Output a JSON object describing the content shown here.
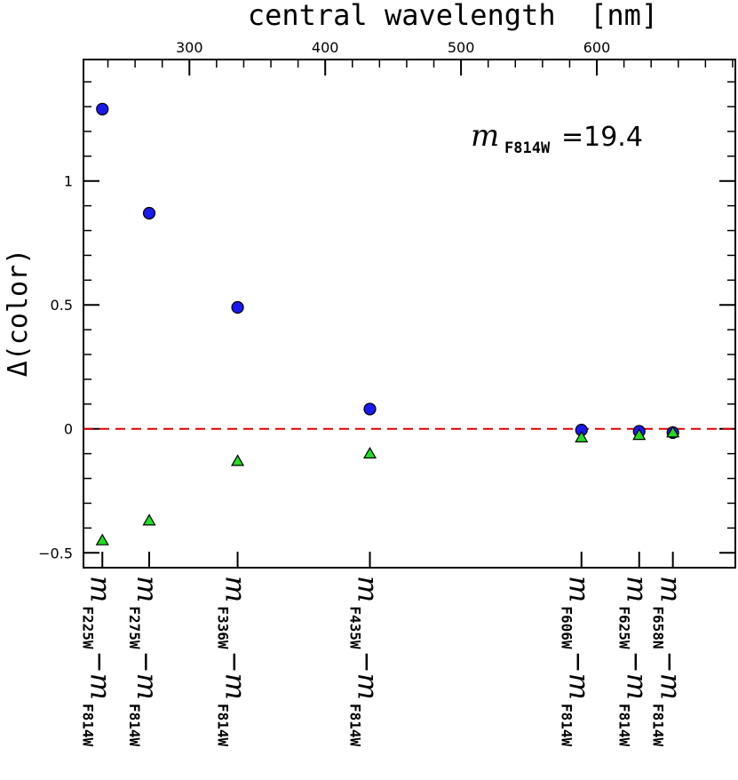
{
  "chart_data": {
    "type": "scatter",
    "top_axis": {
      "label": "central wavelength  [nm]",
      "ticks": [
        300,
        400,
        500,
        600
      ],
      "xlim": [
        222,
        702
      ],
      "minor_step": 20
    },
    "y_axis": {
      "label": "Δ(color)",
      "ylim": [
        -0.56,
        1.49
      ],
      "ticks": [
        -0.5,
        0,
        0.5,
        1
      ],
      "tick_labels": [
        "−0.5",
        "0",
        "0.5",
        "1"
      ],
      "minor_step": 0.1
    },
    "reference_line": {
      "y": 0,
      "style": "dashed",
      "color": "#dd0000"
    },
    "annotation": {
      "symbol": "m",
      "subscript": "F814W",
      "value": "=19.4"
    },
    "categories": [
      {
        "wavelength": 235.9,
        "filter": "F225W",
        "ref": "F814W"
      },
      {
        "wavelength": 270.4,
        "filter": "F275W",
        "ref": "F814W"
      },
      {
        "wavelength": 335.5,
        "filter": "F336W",
        "ref": "F814W"
      },
      {
        "wavelength": 432.9,
        "filter": "F435W",
        "ref": "F814W"
      },
      {
        "wavelength": 588.7,
        "filter": "F606W",
        "ref": "F814W"
      },
      {
        "wavelength": 631.2,
        "filter": "F625W",
        "ref": "F814W"
      },
      {
        "wavelength": 656.0,
        "filter": "F658N",
        "ref": "F814W"
      }
    ],
    "series": [
      {
        "marker": "circle",
        "color": "#1a1aee",
        "values": [
          1.29,
          0.87,
          0.49,
          0.08,
          -0.005,
          -0.01,
          -0.015
        ]
      },
      {
        "marker": "triangle",
        "color": "#22dd22",
        "values": [
          -0.45,
          -0.37,
          -0.13,
          -0.1,
          -0.035,
          -0.025,
          -0.015
        ]
      }
    ]
  }
}
